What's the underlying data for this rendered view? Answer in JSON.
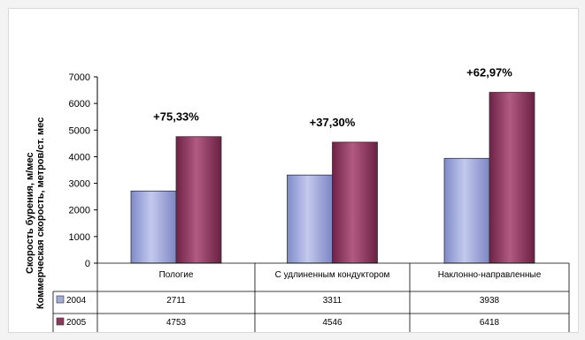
{
  "chart_data": {
    "type": "bar",
    "categories": [
      "Пологие",
      "С удлиненным кондуктором",
      "Наклонно-направленные"
    ],
    "series": [
      {
        "name": "2004",
        "values": [
          2711,
          3311,
          3938
        ],
        "color": "#a3acd9"
      },
      {
        "name": "2005",
        "values": [
          4753,
          4546,
          6418
        ],
        "color": "#8c3a5c"
      }
    ],
    "annotations": [
      "+75,33%",
      "+37,30%",
      "+62,97%"
    ],
    "ylabel_back": "Скорость бурения, м/мес",
    "ylabel": "Коммерческая скорость, метров/ст. мес",
    "ylim": [
      0,
      7000
    ],
    "yticks": [
      0,
      1000,
      2000,
      3000,
      4000,
      5000,
      6000,
      7000
    ],
    "grid": false,
    "legend": "data-table"
  }
}
